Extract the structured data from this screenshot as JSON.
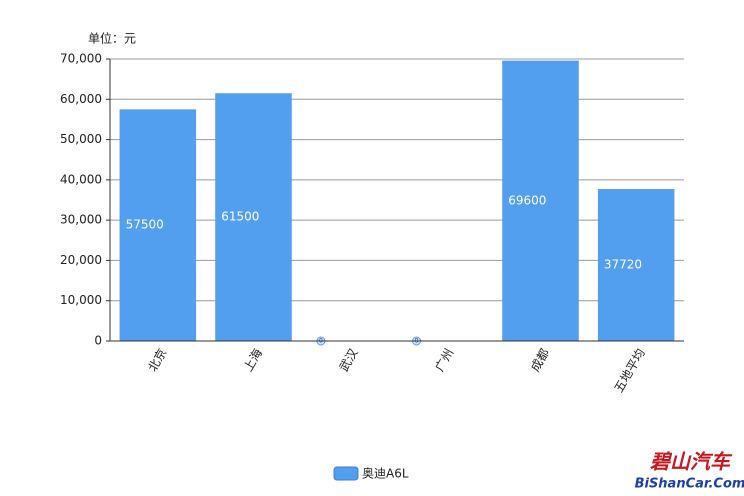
{
  "chart_data": {
    "type": "bar",
    "unit_label": "单位：元",
    "categories": [
      "北京",
      "上海",
      "武汉",
      "广州",
      "成都",
      "五地平均"
    ],
    "series": [
      {
        "name": "奥迪A6L",
        "color": "#529eef",
        "values": [
          57500,
          61500,
          0,
          0,
          69600,
          37720
        ]
      }
    ],
    "ylim": [
      0,
      70000
    ],
    "yticks": [
      0,
      {
        "value": 10000,
        "label": "10,000"
      },
      {
        "value": 20000,
        "label": "20,000"
      },
      {
        "value": 30000,
        "label": "30,000"
      },
      {
        "value": 40000,
        "label": "40,000"
      },
      {
        "value": 50000,
        "label": "50,000"
      },
      {
        "value": 60000,
        "label": "60,000"
      },
      {
        "value": 70000,
        "label": "70,000"
      }
    ],
    "grid": true
  },
  "watermark": {
    "line1": "碧山汽车",
    "line2": "BiShanCar.Com"
  }
}
